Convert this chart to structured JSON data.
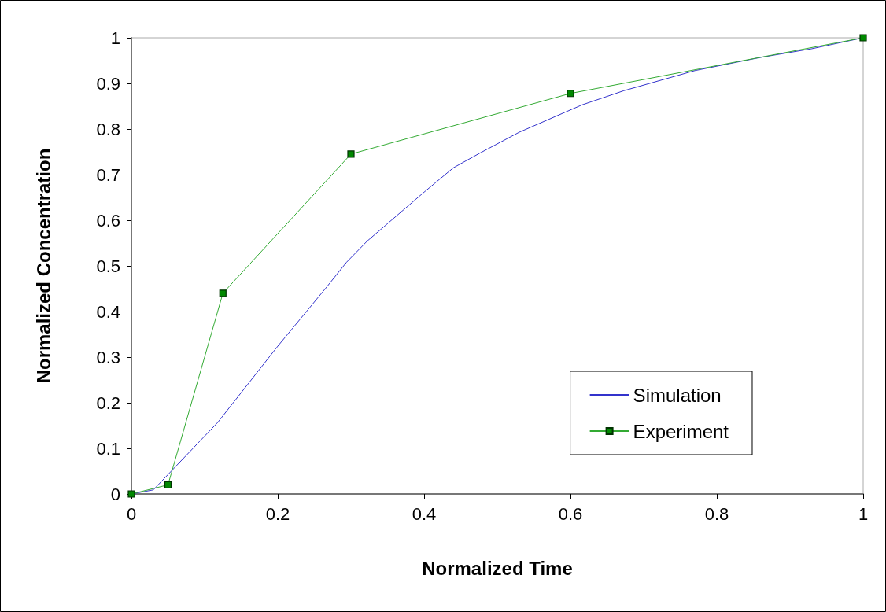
{
  "chart_data": {
    "type": "line",
    "xlabel": "Normalized Time",
    "ylabel": "Normalized Concentration",
    "xlim": [
      0,
      1
    ],
    "xticks": [
      0,
      0.2,
      0.4,
      0.6,
      0.8,
      1
    ],
    "ylim": [
      0,
      1
    ],
    "yticks": [
      0,
      0.1,
      0.2,
      0.3,
      0.4,
      0.5,
      0.6,
      0.7,
      0.8,
      0.9,
      1
    ],
    "grid": false,
    "legend": "bottom right",
    "series": [
      {
        "name": "Simulation",
        "color": "#3333cc",
        "marker": "none",
        "x": [
          0,
          0.03,
          0.118,
          0.2,
          0.265,
          0.294,
          0.322,
          0.401,
          0.44,
          0.476,
          0.53,
          0.616,
          0.673,
          0.77,
          0.86,
          0.93,
          1
        ],
        "values": [
          0,
          0.009,
          0.157,
          0.324,
          0.45,
          0.508,
          0.554,
          0.663,
          0.715,
          0.747,
          0.793,
          0.853,
          0.884,
          0.928,
          0.957,
          0.976,
          1
        ]
      },
      {
        "name": "Experiment",
        "color": "#33aa33",
        "marker": "square",
        "x": [
          0,
          0.05,
          0.125,
          0.3,
          0.6,
          1
        ],
        "values": [
          0,
          0.02,
          0.44,
          0.745,
          0.878,
          1
        ]
      }
    ]
  }
}
